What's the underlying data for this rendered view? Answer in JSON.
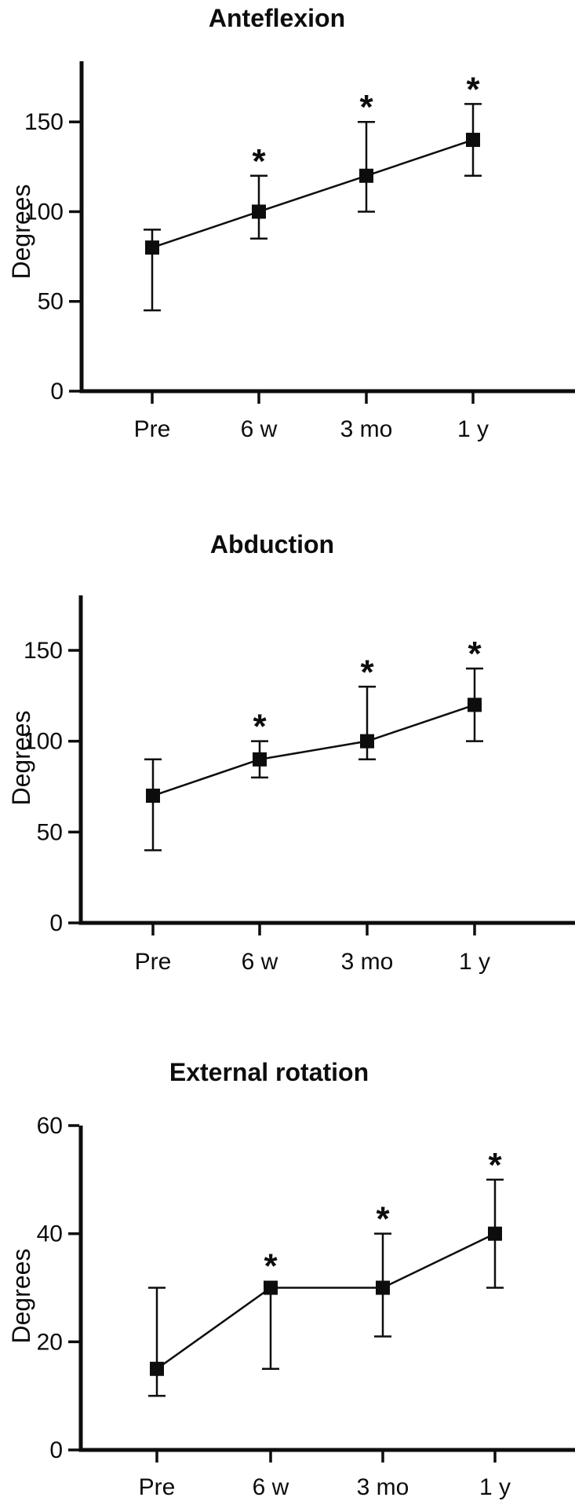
{
  "figure": {
    "y_axis_label": "Degrees",
    "significance_symbol": "*",
    "ink_color": "#0d0d0d",
    "background_color": "#ffffff"
  },
  "chart_data": [
    {
      "type": "line",
      "title": "Anteflexion",
      "ylabel": "Degrees",
      "xlabel": "",
      "categories": [
        "Pre",
        "6 w",
        "3 mo",
        "1 y"
      ],
      "yticks": [
        0,
        50,
        100,
        150
      ],
      "ylim": [
        0,
        183
      ],
      "grid": false,
      "legend": "none",
      "series": [
        {
          "name": "mean with error bars",
          "values": [
            80,
            100,
            120,
            140
          ],
          "error_low": [
            45,
            85,
            100,
            120
          ],
          "error_high": [
            90,
            120,
            150,
            160
          ],
          "significant": [
            false,
            true,
            true,
            true
          ]
        }
      ]
    },
    {
      "type": "line",
      "title": "Abduction",
      "ylabel": "Degrees",
      "xlabel": "",
      "categories": [
        "Pre",
        "6 w",
        "3 mo",
        "1 y"
      ],
      "yticks": [
        0,
        50,
        100,
        150
      ],
      "ylim": [
        0,
        181
      ],
      "grid": false,
      "legend": "none",
      "series": [
        {
          "name": "mean with error bars",
          "values": [
            70,
            90,
            100,
            120
          ],
          "error_low": [
            40,
            80,
            90,
            100
          ],
          "error_high": [
            90,
            100,
            130,
            140
          ],
          "significant": [
            false,
            true,
            true,
            true
          ]
        }
      ]
    },
    {
      "type": "line",
      "title": "External rotation",
      "ylabel": "Degrees",
      "xlabel": "",
      "categories": [
        "Pre",
        "6 w",
        "3 mo",
        "1 y"
      ],
      "yticks": [
        0,
        20,
        40,
        60
      ],
      "ylim": [
        0,
        60
      ],
      "grid": false,
      "legend": "none",
      "series": [
        {
          "name": "mean with error bars",
          "values": [
            15,
            30,
            30,
            40
          ],
          "error_low": [
            10,
            15,
            21,
            30
          ],
          "error_high": [
            30,
            null,
            40,
            50
          ],
          "significant": [
            false,
            true,
            true,
            true
          ]
        }
      ]
    }
  ]
}
